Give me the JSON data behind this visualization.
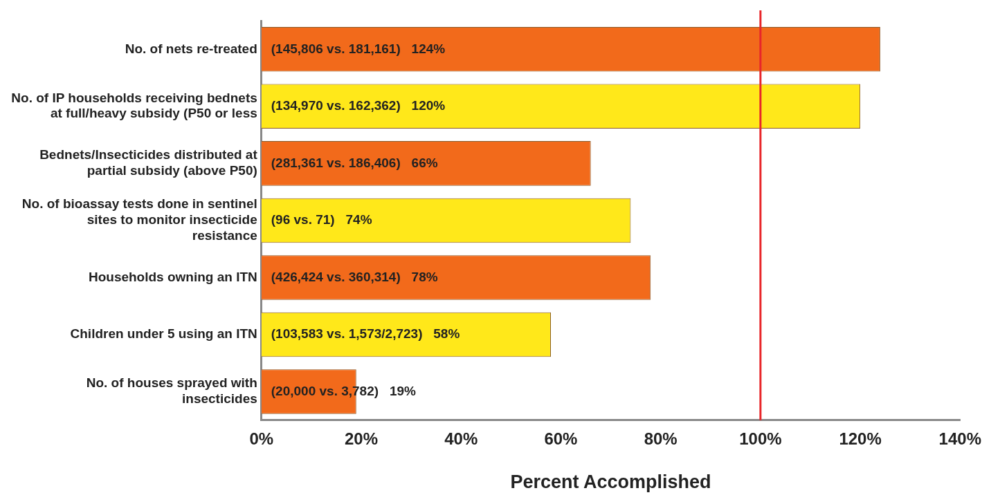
{
  "chart_data": {
    "type": "bar",
    "orientation": "horizontal",
    "xlabel": "Percent Accomplished",
    "categories": [
      "No. of nets re-treated",
      "No. of IP households receiving bednets at full/heavy subsidy (P50 or less",
      "Bednets/Insecticides distributed at partial subsidy (above P50)",
      "No. of bioassay tests done in sentinel sites to monitor insecticide resistance",
      "Households owning an ITN",
      "Children under 5 using an ITN",
      "No. of houses sprayed with insecticides"
    ],
    "values": [
      124,
      120,
      66,
      74,
      78,
      58,
      19
    ],
    "colors": [
      "#f26a1b",
      "#ffe81a",
      "#f26a1b",
      "#ffe81a",
      "#f26a1b",
      "#ffe81a",
      "#f26a1b"
    ],
    "value_labels": [
      "(145,806 vs. 181,161)   124%",
      "(134,970 vs. 162,362)   120%",
      "(281,361 vs. 186,406)   66%",
      "(96 vs. 71)   74%",
      "(426,424 vs. 360,314)   78%",
      "(103,583 vs. 1,573/2,723)   58%",
      "(20,000 vs. 3,782)   19%"
    ],
    "xlim": [
      0,
      140
    ],
    "xticks": [
      {
        "value": 0,
        "label": "0%"
      },
      {
        "value": 20,
        "label": "20%"
      },
      {
        "value": 40,
        "label": "40%"
      },
      {
        "value": 60,
        "label": "60%"
      },
      {
        "value": 80,
        "label": "80%"
      },
      {
        "value": 100,
        "label": "100%"
      },
      {
        "value": 120,
        "label": "120%"
      },
      {
        "value": 140,
        "label": "140%"
      }
    ],
    "ref_lines": [
      {
        "axis": "x",
        "value": 100,
        "color": "#e8262a"
      }
    ],
    "grid": false,
    "legend": false
  }
}
